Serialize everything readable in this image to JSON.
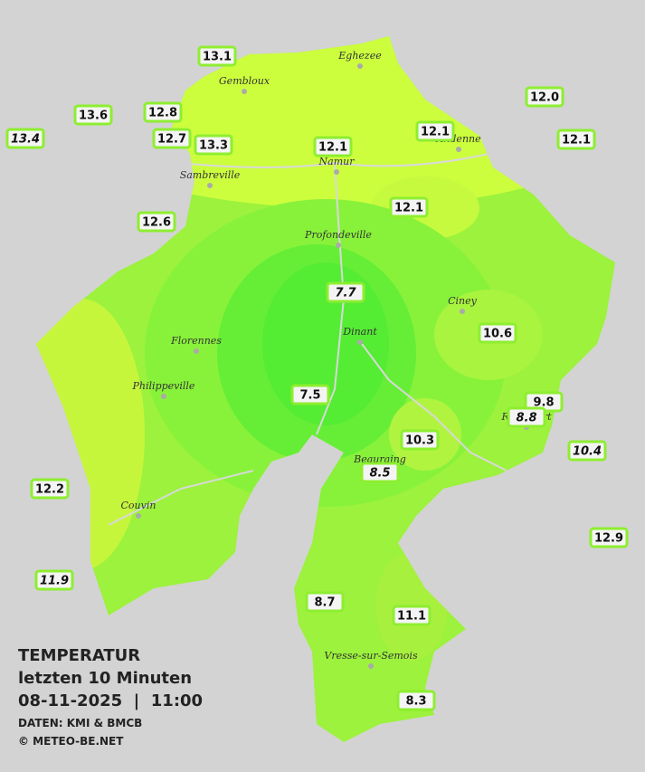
{
  "header": {
    "title": "TEMPERATUR",
    "subtitle": "letzten 10 Minuten",
    "datetime": "08-11-2025  |  11:00",
    "source": "DATEN: KMI & BMCB",
    "copyright": "© METEO-BE.NET"
  },
  "towns": [
    "Eghezee",
    "Gembloux",
    "Andenne",
    "Namur",
    "Sambreville",
    "Profondeville",
    "Ciney",
    "Dinant",
    "Florennes",
    "Philippeville",
    "Rochefort",
    "Beauraing",
    "Couvin",
    "Vresse-sur-Semois"
  ],
  "stations": [
    {
      "value": "13.1"
    },
    {
      "value": "13.6"
    },
    {
      "value": "13.4",
      "italic": true
    },
    {
      "value": "12.8"
    },
    {
      "value": "12.7"
    },
    {
      "value": "13.3"
    },
    {
      "value": "12.1"
    },
    {
      "value": "12.1"
    },
    {
      "value": "12.0"
    },
    {
      "value": "12.1"
    },
    {
      "value": "12.1"
    },
    {
      "value": "12.6"
    },
    {
      "value": "7.7",
      "italic": true
    },
    {
      "value": "10.6"
    },
    {
      "value": "7.5"
    },
    {
      "value": "9.8"
    },
    {
      "value": "8.8",
      "italic": true
    },
    {
      "value": "10.3"
    },
    {
      "value": "8.5",
      "italic": true
    },
    {
      "value": "10.4",
      "italic": true
    },
    {
      "value": "12.2"
    },
    {
      "value": "12.9"
    },
    {
      "value": "11.9",
      "italic": true
    },
    {
      "value": "8.7"
    },
    {
      "value": "11.1"
    },
    {
      "value": "8.3"
    }
  ]
}
